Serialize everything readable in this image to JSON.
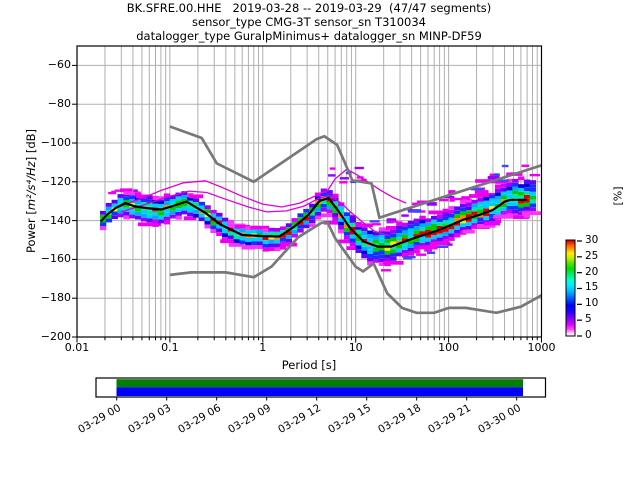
{
  "title": {
    "line1": "BK.SFRE.00.HHE   2019-03-28 -- 2019-03-29  (47/47 segments)",
    "line2": "sensor_type CMG-3T sensor_sn T310034",
    "line3": "datalogger_type GuralpMinimus+ datalogger_sn MINP-DF59"
  },
  "axes": {
    "xlabel": "Period [s]",
    "ylabel_segments": [
      "Power [",
      "m²/s⁴/Hz",
      "] [dB]"
    ],
    "x_tick_labels": [
      "0.01",
      "0.1",
      "1",
      "10",
      "100",
      "1000"
    ],
    "x_tick_values": [
      0.01,
      0.1,
      1,
      10,
      100,
      1000
    ],
    "y_tick_labels": [
      "−60",
      "−80",
      "−100",
      "−120",
      "−140",
      "−160",
      "−180",
      "−200"
    ],
    "y_tick_values": [
      -60,
      -80,
      -100,
      -120,
      -140,
      -160,
      -180,
      -200
    ],
    "x_range": [
      0.01,
      1000
    ],
    "y_range": [
      -200,
      -50
    ],
    "grid_color": "#b0b0b0"
  },
  "colorbar": {
    "label": "[%]",
    "tick_labels": [
      "0",
      "5",
      "10",
      "15",
      "20",
      "25",
      "30"
    ],
    "tick_values": [
      0,
      5,
      10,
      15,
      20,
      25,
      30
    ],
    "vmax": 30.3,
    "stops": [
      [
        0,
        "#ffffff"
      ],
      [
        0.03,
        "#ffccff"
      ],
      [
        0.07,
        "#ff44ff"
      ],
      [
        0.12,
        "#dd00ff"
      ],
      [
        0.18,
        "#8800ff"
      ],
      [
        0.25,
        "#2200ff"
      ],
      [
        0.32,
        "#0000ff"
      ],
      [
        0.4,
        "#0066ff"
      ],
      [
        0.47,
        "#00bbff"
      ],
      [
        0.53,
        "#00eeff"
      ],
      [
        0.58,
        "#00ffcc"
      ],
      [
        0.64,
        "#00ee77"
      ],
      [
        0.7,
        "#00dd00"
      ],
      [
        0.76,
        "#55e400"
      ],
      [
        0.81,
        "#baee00"
      ],
      [
        0.86,
        "#ffee00"
      ],
      [
        0.9,
        "#ffaa00"
      ],
      [
        0.94,
        "#ff6600"
      ],
      [
        0.97,
        "#ff2200"
      ],
      [
        1,
        "#bb0000"
      ]
    ]
  },
  "coverage": {
    "green": "#007f00",
    "blue": "#0000ff",
    "tick_labels": [
      "03-29 00",
      "03-29 03",
      "03-29 06",
      "03-29 09",
      "03-29 12",
      "03-29 15",
      "03-29 18",
      "03-29 21",
      "03-30 00"
    ]
  },
  "chart_data": {
    "type": "heatmap",
    "title": "BK.SFRE.00.HHE 2019-03-28 -- 2019-03-29 (47/47 segments)",
    "x_axis": {
      "label": "Period [s]",
      "scale": "log",
      "range": [
        0.01,
        1000
      ]
    },
    "y_axis": {
      "label": "Power [m^2/s^4/Hz] [dB]",
      "range": [
        -200,
        -50
      ],
      "ticks_step": 20
    },
    "colorbar": {
      "label": "[%]",
      "range": [
        0,
        30
      ],
      "tick_step": 5
    },
    "legend_position": "none",
    "grid": true,
    "series": [
      {
        "name": "low_noise_model",
        "color": "#787878",
        "points": [
          [
            0.1,
            -168
          ],
          [
            0.17,
            -166.7
          ],
          [
            0.4,
            -166.7
          ],
          [
            0.8,
            -169.2
          ],
          [
            1.24,
            -163.7
          ],
          [
            2.4,
            -148.6
          ],
          [
            4.3,
            -141.1
          ],
          [
            5,
            -141.1
          ],
          [
            6,
            -149
          ],
          [
            10,
            -163.8
          ],
          [
            12,
            -166.2
          ],
          [
            15.6,
            -162.1
          ],
          [
            21.9,
            -177.5
          ],
          [
            31.6,
            -185
          ],
          [
            45,
            -187.5
          ],
          [
            70,
            -187.5
          ],
          [
            101,
            -185
          ],
          [
            154,
            -185
          ],
          [
            328,
            -187.5
          ],
          [
            600,
            -184.4
          ],
          [
            1000,
            -178.5
          ]
        ]
      },
      {
        "name": "high_noise_model",
        "color": "#787878",
        "points": [
          [
            0.1,
            -91.5
          ],
          [
            0.22,
            -97.4
          ],
          [
            0.32,
            -110.5
          ],
          [
            0.8,
            -120
          ],
          [
            3.8,
            -98
          ],
          [
            4.6,
            -96.5
          ],
          [
            6.3,
            -101
          ],
          [
            7.9,
            -111.8
          ],
          [
            9.2,
            -119.3
          ],
          [
            14.8,
            -120.8
          ],
          [
            18,
            -138.5
          ],
          [
            1000,
            -111.5
          ]
        ]
      },
      {
        "name": "mode",
        "color": "#000000",
        "points": [
          [
            0.018,
            -140.5
          ],
          [
            0.021,
            -137
          ],
          [
            0.026,
            -133.5
          ],
          [
            0.033,
            -131
          ],
          [
            0.042,
            -132.7
          ],
          [
            0.055,
            -133.5
          ],
          [
            0.08,
            -134.3
          ],
          [
            0.1,
            -133
          ],
          [
            0.15,
            -130.2
          ],
          [
            0.24,
            -136
          ],
          [
            0.35,
            -142
          ],
          [
            0.6,
            -147.4
          ],
          [
            1,
            -148
          ],
          [
            1.5,
            -148.2
          ],
          [
            2.2,
            -143
          ],
          [
            3.1,
            -137
          ],
          [
            4.1,
            -129.8
          ],
          [
            5.1,
            -128.4
          ],
          [
            6.5,
            -135
          ],
          [
            8.7,
            -143.9
          ],
          [
            12.2,
            -150.8
          ],
          [
            17.3,
            -153.4
          ],
          [
            24,
            -153.4
          ],
          [
            42,
            -149.1
          ],
          [
            80,
            -144.8
          ],
          [
            143,
            -139.6
          ],
          [
            216,
            -137
          ],
          [
            300,
            -134.5
          ],
          [
            403,
            -130.2
          ],
          [
            460,
            -129.3
          ],
          [
            700,
            -129.3
          ]
        ]
      },
      {
        "name": "percentile_upper",
        "color": "#dd00dd",
        "points": [
          [
            0.028,
            -133
          ],
          [
            0.05,
            -128.5
          ],
          [
            0.08,
            -124.5
          ],
          [
            0.14,
            -120.5
          ],
          [
            0.24,
            -119.5
          ],
          [
            0.35,
            -122.5
          ],
          [
            0.6,
            -127.5
          ],
          [
            1,
            -131.5
          ],
          [
            1.6,
            -133
          ],
          [
            2.5,
            -131
          ],
          [
            4,
            -126.5
          ],
          [
            5,
            -124.5
          ],
          [
            6,
            -118.5
          ],
          [
            8,
            -113.5
          ],
          [
            10,
            -116
          ],
          [
            13,
            -119.5
          ],
          [
            18,
            -124
          ],
          [
            25,
            -128
          ],
          [
            35,
            -131
          ]
        ]
      },
      {
        "name": "percentile_mid",
        "color": "#dd00dd",
        "points": [
          [
            0.03,
            -135.5
          ],
          [
            0.06,
            -131
          ],
          [
            0.1,
            -127.5
          ],
          [
            0.16,
            -124.8
          ],
          [
            0.25,
            -125.5
          ],
          [
            0.4,
            -129
          ],
          [
            0.7,
            -133
          ],
          [
            1.1,
            -135.5
          ],
          [
            1.8,
            -135
          ],
          [
            2.8,
            -132.5
          ],
          [
            4,
            -128.5
          ],
          [
            5.2,
            -127
          ],
          [
            7,
            -131
          ],
          [
            9,
            -136
          ],
          [
            12,
            -141
          ],
          [
            16,
            -145.5
          ],
          [
            22,
            -147.5
          ]
        ]
      }
    ],
    "band": {
      "comment": "PPSD histogram extent around mode: [period, dB_above_mode, dB_below_mode]",
      "points": [
        [
          0.018,
          4,
          5
        ],
        [
          0.03,
          7,
          7
        ],
        [
          0.06,
          7,
          8
        ],
        [
          0.15,
          6,
          7
        ],
        [
          0.3,
          5,
          6
        ],
        [
          0.8,
          4,
          6
        ],
        [
          1.5,
          4,
          7
        ],
        [
          3,
          4.5,
          7
        ],
        [
          5,
          5,
          8
        ],
        [
          8,
          8,
          9
        ],
        [
          15,
          9,
          10
        ],
        [
          30,
          11,
          8
        ],
        [
          60,
          10,
          7
        ],
        [
          120,
          9,
          7
        ],
        [
          250,
          10,
          7
        ],
        [
          450,
          11,
          8
        ],
        [
          700,
          12,
          9
        ],
        [
          850,
          10,
          6
        ]
      ]
    },
    "histogram": {
      "bins_per_decade": 16,
      "cell_db": 2,
      "p_min": 0.0177,
      "p_max": 850
    }
  }
}
